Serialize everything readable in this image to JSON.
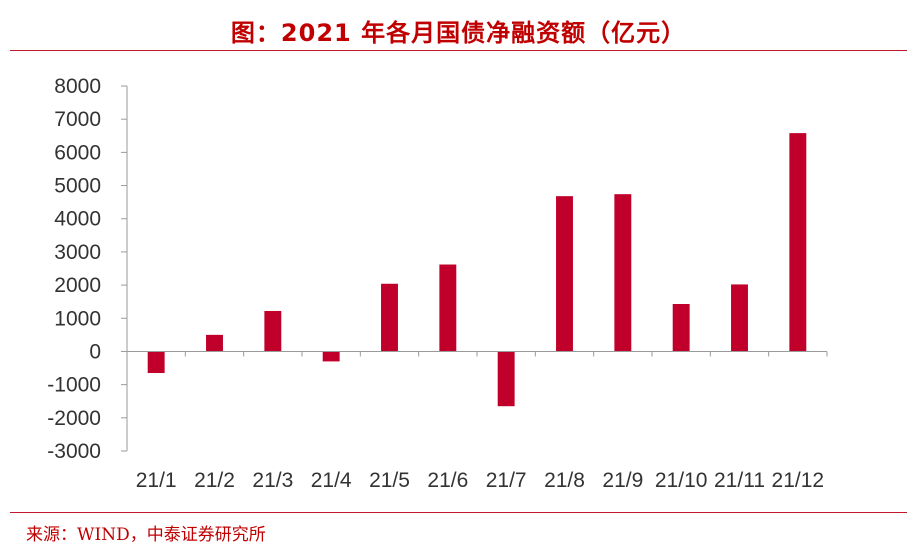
{
  "title": "图：2021 年各月国债净融资额（亿元）",
  "source": "来源：WIND，中泰证券研究所",
  "chart_data": {
    "type": "bar",
    "categories": [
      "21/1",
      "21/2",
      "21/3",
      "21/4",
      "21/5",
      "21/6",
      "21/7",
      "21/8",
      "21/9",
      "21/10",
      "21/11",
      "21/12"
    ],
    "series": [
      {
        "values": [
          -650,
          500,
          1220,
          -300,
          2040,
          2620,
          -1650,
          4680,
          4740,
          1430,
          2020,
          6580
        ]
      }
    ],
    "ylim": [
      -3000,
      8000
    ],
    "yticks": [
      8000,
      7000,
      6000,
      5000,
      4000,
      3000,
      2000,
      1000,
      0,
      -1000,
      -2000,
      -3000
    ],
    "grid": false,
    "bar_color": "#c0002a"
  }
}
